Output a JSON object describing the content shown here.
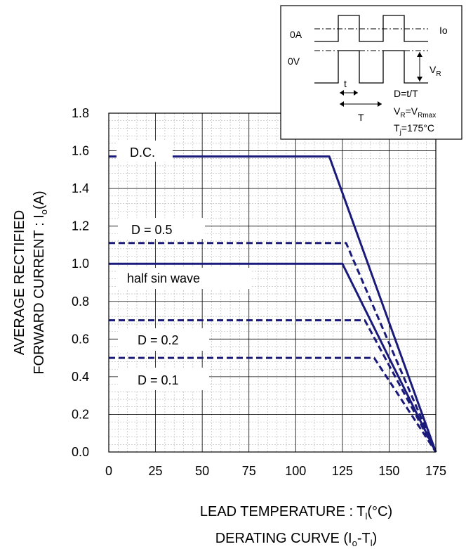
{
  "chart_data": {
    "type": "line",
    "xlabel": {
      "prefix": "LEAD TEMPERATURE : T",
      "sub": "l",
      "suffix": "(°C)"
    },
    "subtitle": {
      "prefix": "DERATING CURVE (I",
      "sub1": "o",
      "mid": "-T",
      "sub2": "l",
      "suffix": ")"
    },
    "ylabel": {
      "line1": "AVERAGE RECTIFIED",
      "line2_prefix": "FORWARD CURRENT : I",
      "line2_sub": "o",
      "line2_suffix": "(A)"
    },
    "xlim": [
      0,
      175
    ],
    "ylim": [
      0,
      1.8
    ],
    "x_ticks": [
      "0",
      "25",
      "50",
      "75",
      "100",
      "125",
      "150",
      "175"
    ],
    "y_ticks": [
      "0.0",
      "0.2",
      "0.4",
      "0.6",
      "0.8",
      "1.0",
      "1.2",
      "1.4",
      "1.6",
      "1.8"
    ],
    "grid": true,
    "series": [
      {
        "name": "D.C.",
        "style": "solid",
        "color": "#1a1a7a",
        "points": [
          [
            0,
            1.57
          ],
          [
            118,
            1.57
          ],
          [
            175,
            0
          ]
        ]
      },
      {
        "name": "D = 0.5",
        "style": "dashed",
        "color": "#1a1a7a",
        "points": [
          [
            0,
            1.11
          ],
          [
            127,
            1.11
          ],
          [
            175,
            0
          ]
        ]
      },
      {
        "name": "half sin wave",
        "style": "solid",
        "color": "#1a1a7a",
        "points": [
          [
            0,
            1.0
          ],
          [
            125,
            1.0
          ],
          [
            175,
            0
          ]
        ]
      },
      {
        "name": "D = 0.2",
        "style": "dashed",
        "color": "#1a1a7a",
        "points": [
          [
            0,
            0.7
          ],
          [
            137,
            0.7
          ],
          [
            175,
            0
          ]
        ]
      },
      {
        "name": "D = 0.1",
        "style": "dashed",
        "color": "#1a1a7a",
        "points": [
          [
            0,
            0.5
          ],
          [
            142,
            0.5
          ],
          [
            175,
            0
          ]
        ]
      }
    ]
  },
  "inset": {
    "label_0a": "0A",
    "label_0v": "0V",
    "label_io": "Io",
    "label_vr": {
      "main": "V",
      "sub": "R"
    },
    "label_t": "t",
    "label_T": "T",
    "formula_d": "D=t/T",
    "formula_vr": {
      "a": "V",
      "a_sub": "R",
      "eq": "=V",
      "b_sub": "Rmax"
    },
    "formula_tj": {
      "a": "T",
      "a_sub": "j",
      "rest": "=175°C"
    }
  }
}
